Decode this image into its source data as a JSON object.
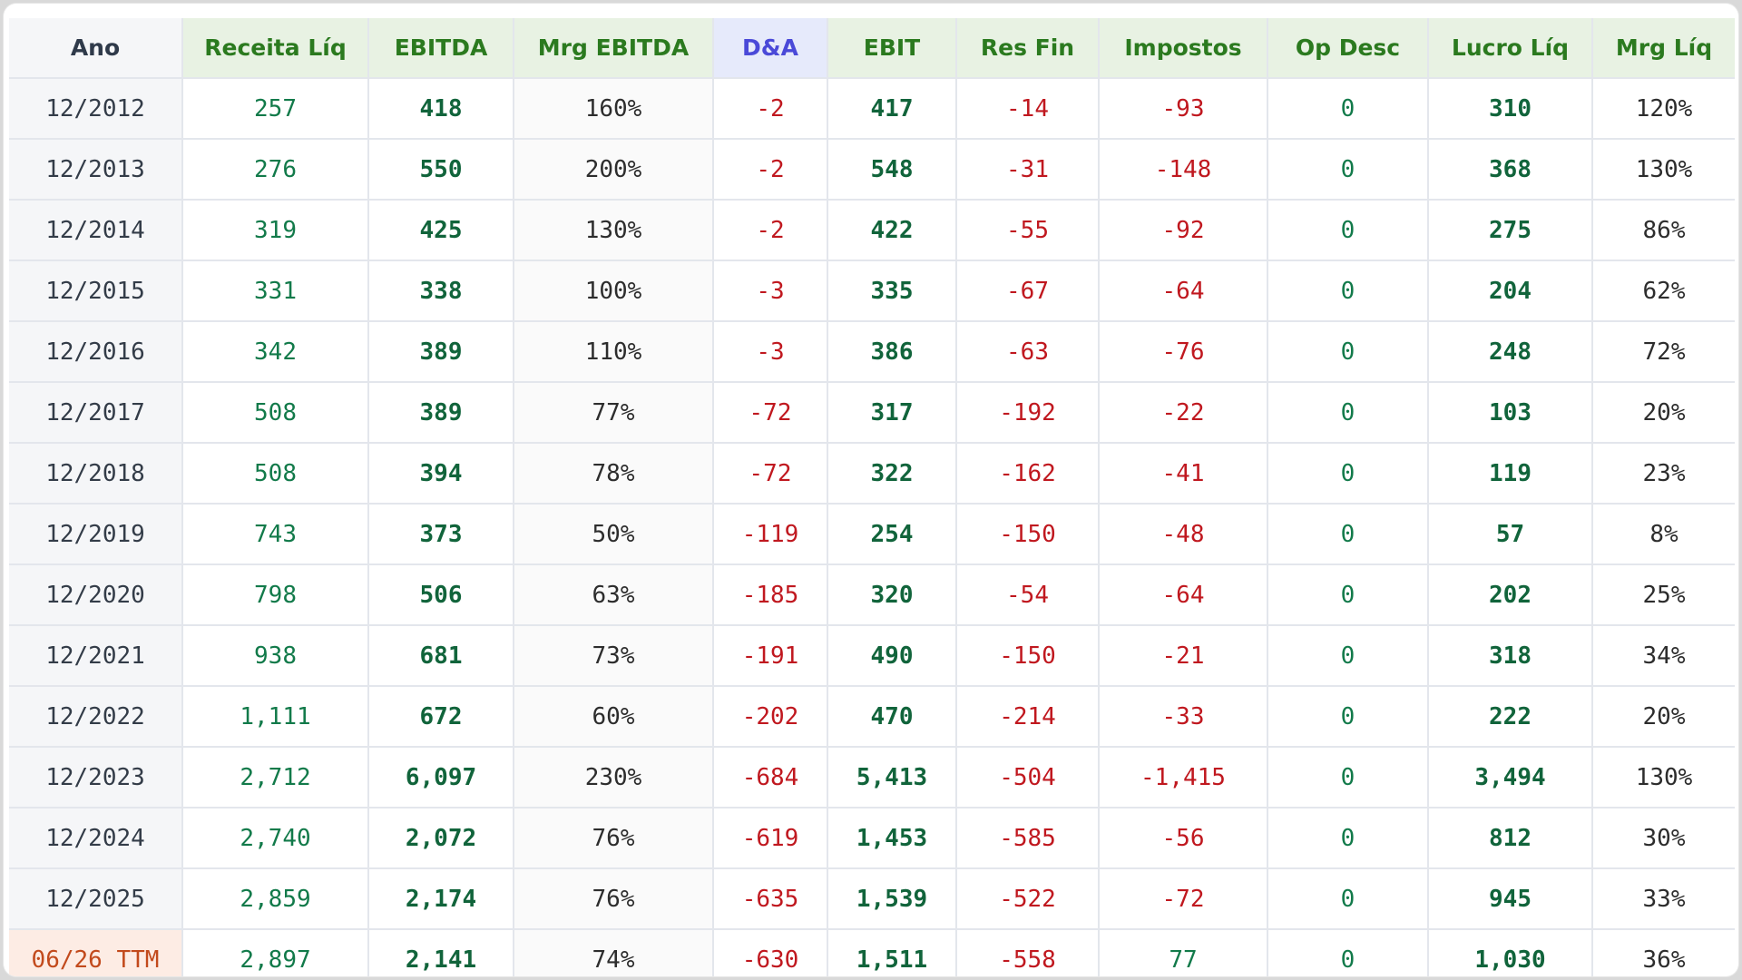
{
  "table": {
    "headers": [
      "Ano",
      "Receita Líq",
      "EBITDA",
      "Mrg EBITDA",
      "D&A",
      "EBIT",
      "Res Fin",
      "Impostos",
      "Op Desc",
      "Lucro Líq",
      "Mrg Líq"
    ],
    "rows": [
      [
        "12/2012",
        "257",
        "418",
        "160%",
        "-2",
        "417",
        "-14",
        "-93",
        "0",
        "310",
        "120%"
      ],
      [
        "12/2013",
        "276",
        "550",
        "200%",
        "-2",
        "548",
        "-31",
        "-148",
        "0",
        "368",
        "130%"
      ],
      [
        "12/2014",
        "319",
        "425",
        "130%",
        "-2",
        "422",
        "-55",
        "-92",
        "0",
        "275",
        "86%"
      ],
      [
        "12/2015",
        "331",
        "338",
        "100%",
        "-3",
        "335",
        "-67",
        "-64",
        "0",
        "204",
        "62%"
      ],
      [
        "12/2016",
        "342",
        "389",
        "110%",
        "-3",
        "386",
        "-63",
        "-76",
        "0",
        "248",
        "72%"
      ],
      [
        "12/2017",
        "508",
        "389",
        "77%",
        "-72",
        "317",
        "-192",
        "-22",
        "0",
        "103",
        "20%"
      ],
      [
        "12/2018",
        "508",
        "394",
        "78%",
        "-72",
        "322",
        "-162",
        "-41",
        "0",
        "119",
        "23%"
      ],
      [
        "12/2019",
        "743",
        "373",
        "50%",
        "-119",
        "254",
        "-150",
        "-48",
        "0",
        "57",
        "8%"
      ],
      [
        "12/2020",
        "798",
        "506",
        "63%",
        "-185",
        "320",
        "-54",
        "-64",
        "0",
        "202",
        "25%"
      ],
      [
        "12/2021",
        "938",
        "681",
        "73%",
        "-191",
        "490",
        "-150",
        "-21",
        "0",
        "318",
        "34%"
      ],
      [
        "12/2022",
        "1,111",
        "672",
        "60%",
        "-202",
        "470",
        "-214",
        "-33",
        "0",
        "222",
        "20%"
      ],
      [
        "12/2023",
        "2,712",
        "6,097",
        "230%",
        "-684",
        "5,413",
        "-504",
        "-1,415",
        "0",
        "3,494",
        "130%"
      ],
      [
        "12/2024",
        "2,740",
        "2,072",
        "76%",
        "-619",
        "1,453",
        "-585",
        "-56",
        "0",
        "812",
        "30%"
      ],
      [
        "12/2025",
        "2,859",
        "2,174",
        "76%",
        "-635",
        "1,539",
        "-522",
        "-72",
        "0",
        "945",
        "33%"
      ],
      [
        "06/26 TTM",
        "2,897",
        "2,141",
        "74%",
        "-630",
        "1,511",
        "-558",
        "77",
        "0",
        "1,030",
        "36%"
      ]
    ]
  },
  "colors": {
    "positive": "#127a4a",
    "negative": "#c0181f",
    "header_green": "#2b7a1f",
    "header_da": "#4a49d8",
    "ttm": "#c24a1c"
  }
}
